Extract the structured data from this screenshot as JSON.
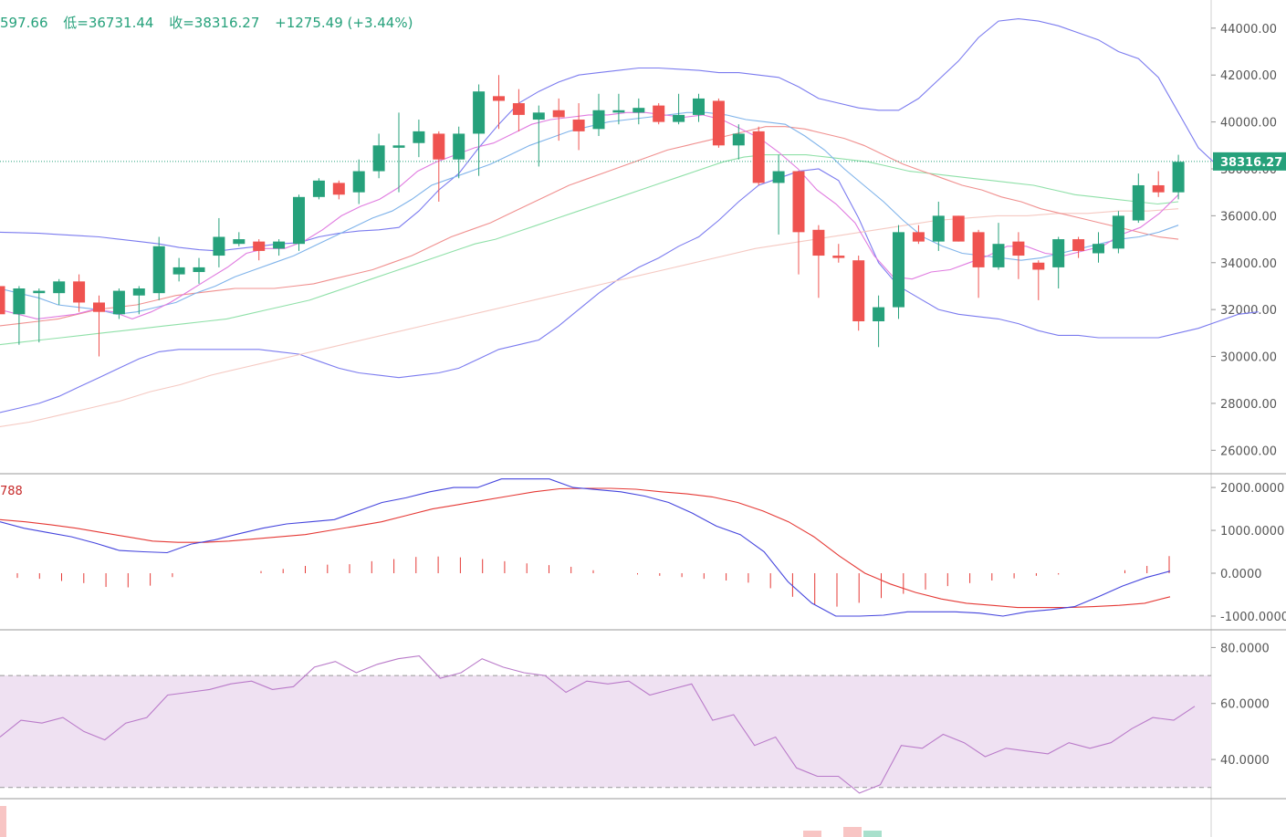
{
  "header": {
    "open_fragment": "597.66",
    "low": "低=36731.44",
    "close": "收=38316.27",
    "change": "+1275.49 (+3.44%)"
  },
  "macd_label": "788",
  "price_tag": "38316.27",
  "colors": {
    "up": "#26a17b",
    "down": "#ef5350",
    "boll": "#7b7bef",
    "ma5": "#e07be0",
    "ma10": "#7fb3ea",
    "ma20": "#f0908f",
    "ma60": "#8fe0a8",
    "ma120": "#f5c9c2",
    "dif": "#4444dd",
    "dea": "#e53935",
    "rsi": "#b97ac9",
    "rsi_band": "#efe1f2",
    "price_line": "#26a17b"
  },
  "chart_data": [
    {
      "type": "candlestick",
      "title": "",
      "ylim": [
        25000,
        45200
      ],
      "y_ticks": [
        "44000.00",
        "42000.00",
        "40000.00",
        "38000.00",
        "36000.00",
        "34000.00",
        "32000.00",
        "30000.00",
        "28000.00",
        "26000.00"
      ],
      "y_tick_values": [
        44000,
        42000,
        40000,
        38000,
        36000,
        34000,
        32000,
        30000,
        28000,
        26000
      ],
      "last_price": 38316.27,
      "candles": [
        [
          33000,
          31800,
          33600,
          31300
        ],
        [
          31800,
          32900,
          33000,
          30500
        ],
        [
          32700,
          32800,
          32900,
          30600
        ],
        [
          32700,
          33200,
          33300,
          32200
        ],
        [
          33200,
          32300,
          33500,
          31900
        ],
        [
          32300,
          31900,
          32600,
          30000
        ],
        [
          31800,
          32800,
          32900,
          31600
        ],
        [
          32600,
          32900,
          33000,
          31800
        ],
        [
          32700,
          34700,
          35100,
          32400
        ],
        [
          33500,
          33800,
          34200,
          33200
        ],
        [
          33600,
          33800,
          34200,
          33100
        ],
        [
          34300,
          35100,
          35900,
          33800
        ],
        [
          34800,
          35000,
          35300,
          34700
        ],
        [
          34900,
          34500,
          35000,
          34100
        ],
        [
          34600,
          34900,
          35000,
          34300
        ],
        [
          34800,
          36800,
          36900,
          34500
        ],
        [
          36800,
          37500,
          37600,
          36700
        ],
        [
          37400,
          36900,
          37500,
          36700
        ],
        [
          37000,
          37900,
          38400,
          36500
        ],
        [
          37900,
          39000,
          39500,
          37600
        ],
        [
          38900,
          39000,
          40400,
          37000
        ],
        [
          39100,
          39600,
          40100,
          38500
        ],
        [
          39500,
          38400,
          39600,
          36600
        ],
        [
          38400,
          39500,
          39800,
          37600
        ],
        [
          39500,
          41300,
          41600,
          37700
        ],
        [
          41100,
          40900,
          42000,
          39700
        ],
        [
          40800,
          40300,
          41400,
          39600
        ],
        [
          40100,
          40400,
          40700,
          38100
        ],
        [
          40500,
          40200,
          41000,
          39200
        ],
        [
          40100,
          39600,
          40800,
          38800
        ],
        [
          39700,
          40500,
          41200,
          39400
        ],
        [
          40400,
          40500,
          41200,
          39900
        ],
        [
          40400,
          40600,
          41000,
          39900
        ],
        [
          40700,
          40000,
          40800,
          39900
        ],
        [
          40000,
          40300,
          41200,
          39900
        ],
        [
          40300,
          41000,
          41200,
          40000
        ],
        [
          40900,
          39000,
          41000,
          38900
        ],
        [
          39000,
          39500,
          39900,
          38400
        ],
        [
          39600,
          37400,
          39800,
          37300
        ],
        [
          37400,
          37900,
          38600,
          35200
        ],
        [
          37900,
          35300,
          37900,
          33500
        ],
        [
          35400,
          34300,
          35600,
          32500
        ],
        [
          34300,
          34200,
          34800,
          34000
        ],
        [
          34100,
          31500,
          34300,
          31100
        ],
        [
          31500,
          32100,
          32600,
          30400
        ],
        [
          32100,
          35300,
          35600,
          31600
        ],
        [
          35300,
          34900,
          35600,
          34800
        ],
        [
          34900,
          36000,
          36600,
          34500
        ],
        [
          36000,
          34900,
          36000,
          34900
        ],
        [
          35300,
          33800,
          35400,
          32500
        ],
        [
          33800,
          34800,
          35700,
          33700
        ],
        [
          34900,
          34300,
          35300,
          33300
        ],
        [
          34000,
          33700,
          34100,
          32400
        ],
        [
          33800,
          35000,
          35100,
          32900
        ],
        [
          35000,
          34500,
          35100,
          34200
        ],
        [
          34400,
          34800,
          35300,
          34000
        ],
        [
          34600,
          36000,
          36200,
          34400
        ],
        [
          35800,
          37300,
          37800,
          35700
        ],
        [
          37300,
          37000,
          37900,
          36800
        ],
        [
          37000,
          38300,
          38600,
          36700
        ]
      ],
      "bollinger_upper": [
        35300,
        35280,
        35250,
        35200,
        35150,
        35100,
        35000,
        34900,
        34800,
        34650,
        34550,
        34500,
        34600,
        34700,
        34800,
        34850,
        35100,
        35250,
        35350,
        35400,
        35500,
        36200,
        37100,
        37800,
        38900,
        39900,
        40800,
        41300,
        41700,
        42000,
        42100,
        42200,
        42300,
        42300,
        42250,
        42200,
        42100,
        42100,
        42000,
        41900,
        41500,
        41000,
        40800,
        40600,
        40500,
        40500,
        41000,
        41800,
        42600,
        43600,
        44300,
        44400,
        44300,
        44100,
        43800,
        43500,
        43000,
        42700,
        41900,
        40400,
        38900,
        38100,
        38000
      ],
      "bollinger_lower": [
        27600,
        27800,
        28000,
        28300,
        28700,
        29100,
        29500,
        29900,
        30200,
        30300,
        30300,
        30300,
        30300,
        30300,
        30200,
        30100,
        29800,
        29500,
        29300,
        29200,
        29100,
        29200,
        29300,
        29500,
        29900,
        30300,
        30500,
        30700,
        31300,
        32000,
        32700,
        33300,
        33800,
        34200,
        34700,
        35100,
        35800,
        36600,
        37300,
        37600,
        37900,
        38000,
        37500,
        35900,
        34000,
        33000,
        32500,
        32000,
        31800,
        31700,
        31600,
        31400,
        31100,
        30900,
        30900,
        30800,
        30800,
        30800,
        30800,
        31000,
        31200,
        31500,
        31800,
        31900
      ],
      "ma5": [
        32000,
        31800,
        31600,
        31700,
        31800,
        32000,
        31900,
        31600,
        31900,
        32300,
        32800,
        33300,
        33800,
        34400,
        34600,
        34600,
        34900,
        35400,
        36000,
        36400,
        36700,
        37200,
        37900,
        38300,
        38600,
        38900,
        39100,
        39500,
        39900,
        40100,
        40200,
        40300,
        40300,
        40400,
        40400,
        40300,
        40200,
        40300,
        40100,
        39700,
        39300,
        38700,
        38000,
        37100,
        36500,
        35700,
        34300,
        33400,
        33300,
        33600,
        33700,
        34000,
        34300,
        34700,
        34700,
        34400,
        34300,
        34500,
        34700,
        35200,
        35500,
        36100,
        36900
      ],
      "ma10": [
        32900,
        32700,
        32500,
        32200,
        32100,
        32000,
        31800,
        31900,
        32100,
        32300,
        32700,
        33000,
        33400,
        33700,
        34000,
        34300,
        34700,
        35100,
        35500,
        35900,
        36200,
        36700,
        37300,
        37600,
        37900,
        38200,
        38600,
        39000,
        39300,
        39600,
        39800,
        40000,
        40100,
        40200,
        40300,
        40400,
        40400,
        40300,
        40100,
        40000,
        39900,
        39400,
        38800,
        38000,
        37300,
        36600,
        35800,
        35100,
        34700,
        34400,
        34300,
        34200,
        34100,
        34200,
        34400,
        34600,
        34800,
        35000,
        35100,
        35300,
        35600
      ],
      "ma20": [
        31300,
        31400,
        31500,
        31600,
        31800,
        32000,
        32100,
        32200,
        32400,
        32600,
        32700,
        32800,
        32900,
        32900,
        32900,
        33000,
        33100,
        33300,
        33500,
        33700,
        34000,
        34300,
        34700,
        35100,
        35400,
        35700,
        36100,
        36500,
        36900,
        37300,
        37600,
        37900,
        38200,
        38500,
        38800,
        39000,
        39200,
        39400,
        39600,
        39800,
        39800,
        39700,
        39500,
        39300,
        39000,
        38600,
        38200,
        37900,
        37600,
        37300,
        37100,
        36800,
        36600,
        36300,
        36100,
        35900,
        35700,
        35500,
        35300,
        35100,
        35000
      ],
      "ma60": [
        30500,
        30600,
        30700,
        30800,
        30900,
        31000,
        31100,
        31200,
        31300,
        31400,
        31500,
        31600,
        31800,
        32000,
        32200,
        32400,
        32700,
        33000,
        33300,
        33600,
        33900,
        34200,
        34500,
        34800,
        35000,
        35300,
        35600,
        35900,
        36200,
        36500,
        36800,
        37100,
        37400,
        37700,
        38000,
        38300,
        38500,
        38600,
        38600,
        38600,
        38500,
        38400,
        38300,
        38100,
        37900,
        37800,
        37700,
        37600,
        37500,
        37400,
        37300,
        37100,
        36900,
        36800,
        36700,
        36600,
        36500,
        36600
      ],
      "ma120": [
        27000,
        27200,
        27500,
        27800,
        28100,
        28500,
        28800,
        29200,
        29500,
        29800,
        30100,
        30400,
        30700,
        31000,
        31300,
        31600,
        31900,
        32200,
        32500,
        32800,
        33100,
        33400,
        33700,
        34000,
        34300,
        34600,
        34800,
        35000,
        35200,
        35400,
        35600,
        35800,
        35900,
        36000,
        36000,
        36100,
        36100,
        36200,
        36200,
        36300
      ]
    },
    {
      "type": "macd",
      "ylim": [
        -1320,
        2300
      ],
      "y_ticks": [
        "2000.0000",
        "1000.0000",
        "0.0000",
        "-1000.0000"
      ],
      "y_tick_values": [
        2000,
        1000,
        0,
        -1000
      ],
      "dif": [
        1200,
        1050,
        950,
        850,
        700,
        530,
        500,
        480,
        680,
        780,
        920,
        1050,
        1150,
        1200,
        1250,
        1450,
        1650,
        1760,
        1900,
        2000,
        2000,
        2200,
        2200,
        2200,
        2000,
        1950,
        1900,
        1800,
        1650,
        1400,
        1100,
        900,
        500,
        -200,
        -700,
        -1000,
        -1000,
        -980,
        -900,
        -900,
        -900,
        -930,
        -1000,
        -900,
        -850,
        -780,
        -550,
        -300,
        -100,
        50
      ],
      "dea": [
        1250,
        1200,
        1130,
        1050,
        950,
        850,
        750,
        720,
        720,
        750,
        800,
        850,
        900,
        1000,
        1100,
        1200,
        1350,
        1500,
        1600,
        1700,
        1800,
        1900,
        1970,
        1980,
        1980,
        1960,
        1900,
        1850,
        1780,
        1650,
        1450,
        1200,
        850,
        400,
        0,
        -250,
        -450,
        -600,
        -700,
        -750,
        -800,
        -800,
        -800,
        -780,
        -750,
        -700,
        -550
      ],
      "histogram": [
        -110,
        -130,
        -180,
        -230,
        -320,
        -330,
        -290,
        -90,
        0,
        0,
        0,
        50,
        100,
        170,
        200,
        210,
        280,
        330,
        380,
        390,
        370,
        330,
        280,
        230,
        190,
        150,
        70,
        0,
        -30,
        -60,
        -90,
        -130,
        -170,
        -220,
        -350,
        -550,
        -730,
        -780,
        -690,
        -580,
        -480,
        -380,
        -300,
        -230,
        -170,
        -120,
        -60,
        -30,
        0,
        0,
        70,
        170,
        400
      ]
    },
    {
      "type": "rsi",
      "ylim": [
        26,
        86
      ],
      "y_ticks": [
        "80.0000",
        "60.0000",
        "40.0000"
      ],
      "y_tick_values": [
        80,
        60,
        40
      ],
      "band": [
        30,
        70
      ],
      "values": [
        48,
        54,
        53,
        55,
        50,
        47,
        53,
        55,
        63,
        64,
        65,
        67,
        68,
        65,
        66,
        73,
        75,
        71,
        74,
        76,
        77,
        69,
        71,
        76,
        73,
        71,
        70,
        64,
        68,
        67,
        68,
        63,
        65,
        67,
        54,
        56,
        45,
        48,
        37,
        34,
        34,
        28,
        31,
        45,
        44,
        49,
        46,
        41,
        44,
        43,
        42,
        46,
        44,
        46,
        51,
        55,
        54,
        59
      ]
    }
  ]
}
